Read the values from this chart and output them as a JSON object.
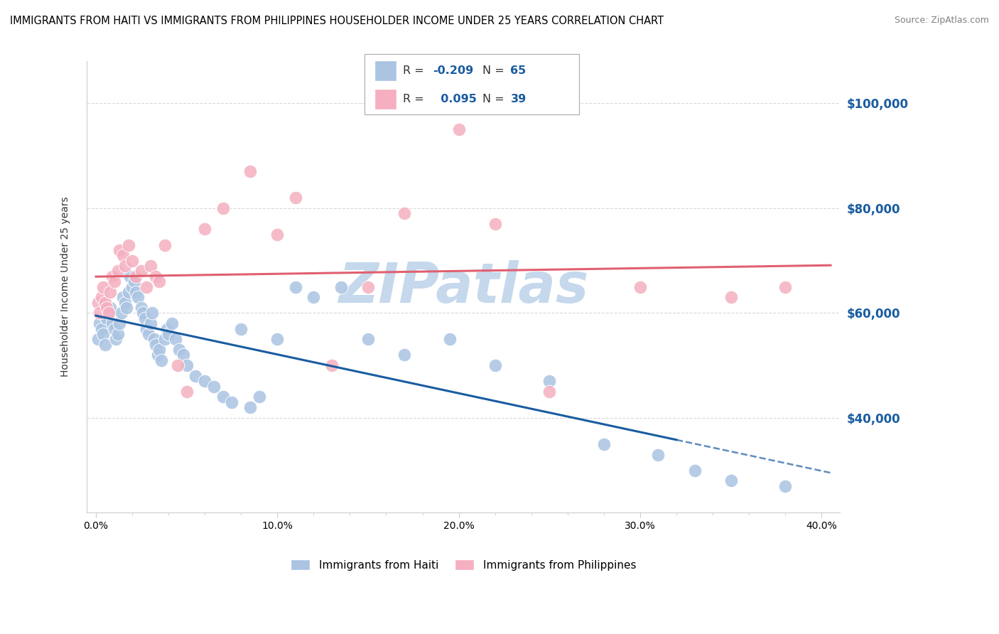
{
  "title": "IMMIGRANTS FROM HAITI VS IMMIGRANTS FROM PHILIPPINES HOUSEHOLDER INCOME UNDER 25 YEARS CORRELATION CHART",
  "source": "Source: ZipAtlas.com",
  "ylabel": "Householder Income Under 25 years",
  "xlabel_ticks": [
    "0.0%",
    "",
    "",
    "",
    "",
    "10.0%",
    "",
    "",
    "",
    "",
    "20.0%",
    "",
    "",
    "",
    "",
    "30.0%",
    "",
    "",
    "",
    "",
    "40.0%"
  ],
  "xlabel_tick_vals": [
    0.0,
    0.02,
    0.04,
    0.06,
    0.08,
    0.1,
    0.12,
    0.14,
    0.16,
    0.18,
    0.2,
    0.22,
    0.24,
    0.26,
    0.28,
    0.3,
    0.32,
    0.34,
    0.36,
    0.38,
    0.4
  ],
  "ylabel_tick_vals": [
    40000,
    60000,
    80000,
    100000
  ],
  "ylabel_ticks_right": [
    "$40,000",
    "$60,000",
    "$80,000",
    "$100,000"
  ],
  "xlim": [
    -0.005,
    0.41
  ],
  "ylim": [
    22000,
    108000
  ],
  "haiti_R": -0.209,
  "haiti_N": 65,
  "phil_R": 0.095,
  "phil_N": 39,
  "haiti_color": "#aac4e2",
  "phil_color": "#f5afc0",
  "haiti_line_color": "#1a5ca0",
  "phil_line_color": "#e06070",
  "haiti_x": [
    0.001,
    0.002,
    0.003,
    0.004,
    0.005,
    0.006,
    0.007,
    0.008,
    0.009,
    0.01,
    0.011,
    0.012,
    0.013,
    0.014,
    0.015,
    0.016,
    0.017,
    0.018,
    0.019,
    0.02,
    0.021,
    0.022,
    0.023,
    0.025,
    0.026,
    0.027,
    0.028,
    0.029,
    0.03,
    0.031,
    0.032,
    0.033,
    0.034,
    0.035,
    0.036,
    0.038,
    0.039,
    0.04,
    0.042,
    0.044,
    0.046,
    0.048,
    0.05,
    0.055,
    0.06,
    0.065,
    0.07,
    0.075,
    0.08,
    0.085,
    0.09,
    0.1,
    0.11,
    0.12,
    0.135,
    0.15,
    0.17,
    0.195,
    0.22,
    0.25,
    0.28,
    0.31,
    0.33,
    0.35,
    0.38
  ],
  "haiti_y": [
    55000,
    58000,
    57000,
    56000,
    54000,
    59000,
    60000,
    61000,
    58000,
    57000,
    55000,
    56000,
    58000,
    60000,
    63000,
    62000,
    61000,
    64000,
    67000,
    65000,
    66000,
    64000,
    63000,
    61000,
    60000,
    59000,
    57000,
    56000,
    58000,
    60000,
    55000,
    54000,
    52000,
    53000,
    51000,
    55000,
    57000,
    56000,
    58000,
    55000,
    53000,
    52000,
    50000,
    48000,
    47000,
    46000,
    44000,
    43000,
    57000,
    42000,
    44000,
    55000,
    65000,
    63000,
    65000,
    55000,
    52000,
    55000,
    50000,
    47000,
    35000,
    33000,
    30000,
    28000,
    27000
  ],
  "phil_x": [
    0.001,
    0.002,
    0.003,
    0.004,
    0.005,
    0.006,
    0.007,
    0.008,
    0.009,
    0.01,
    0.012,
    0.013,
    0.015,
    0.016,
    0.018,
    0.02,
    0.022,
    0.025,
    0.028,
    0.03,
    0.033,
    0.035,
    0.038,
    0.045,
    0.05,
    0.06,
    0.07,
    0.085,
    0.1,
    0.11,
    0.13,
    0.15,
    0.17,
    0.2,
    0.22,
    0.25,
    0.3,
    0.35,
    0.38
  ],
  "phil_y": [
    62000,
    60000,
    63000,
    65000,
    62000,
    61000,
    60000,
    64000,
    67000,
    66000,
    68000,
    72000,
    71000,
    69000,
    73000,
    70000,
    67000,
    68000,
    65000,
    69000,
    67000,
    66000,
    73000,
    50000,
    45000,
    76000,
    80000,
    87000,
    75000,
    82000,
    50000,
    65000,
    79000,
    95000,
    77000,
    45000,
    65000,
    63000,
    65000
  ],
  "background_color": "#ffffff",
  "grid_color": "#d0d0d0",
  "title_fontsize": 10.5,
  "axis_label_fontsize": 10,
  "tick_fontsize": 10,
  "watermark_text": "ZIPatlas",
  "watermark_color": "#c5d8ec",
  "source_text": "Source: ZipAtlas.com"
}
